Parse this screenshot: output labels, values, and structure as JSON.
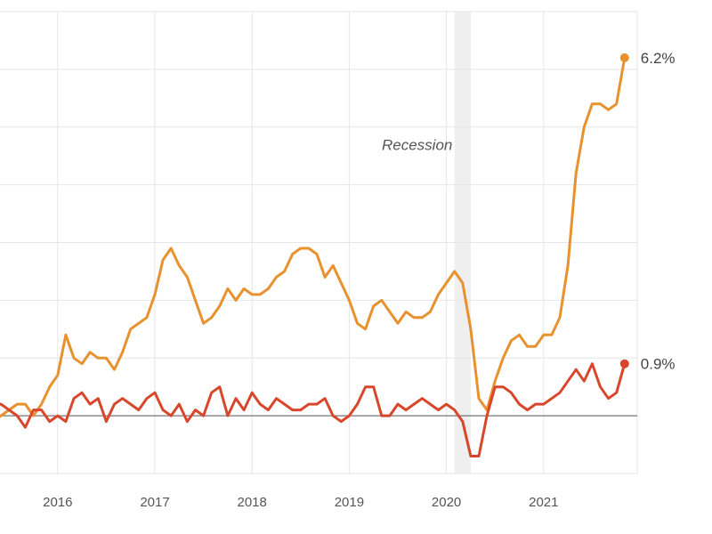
{
  "chart_data": {
    "type": "line",
    "x_ticks": [
      "2016",
      "2017",
      "2018",
      "2019",
      "2020",
      "2021"
    ],
    "ylim": [
      -1.0,
      7.0
    ],
    "y_gridlines": [
      -1,
      0,
      1,
      2,
      3,
      4,
      5,
      6,
      7
    ],
    "grid": true,
    "x_start": "2015-05",
    "recession": {
      "label": "Recession",
      "start": "2020-02",
      "end": "2020-04"
    },
    "series": [
      {
        "color": "#E8912F",
        "end_label": "6.2%",
        "values": [
          -0.1,
          0.0,
          0.1,
          0.2,
          0.2,
          0.0,
          0.2,
          0.5,
          0.7,
          1.4,
          1.0,
          0.9,
          1.1,
          1.0,
          1.0,
          0.8,
          1.1,
          1.5,
          1.6,
          1.7,
          2.1,
          2.7,
          2.9,
          2.6,
          2.4,
          2.0,
          1.6,
          1.7,
          1.9,
          2.2,
          2.0,
          2.2,
          2.1,
          2.1,
          2.2,
          2.4,
          2.5,
          2.8,
          2.9,
          2.9,
          2.8,
          2.4,
          2.6,
          2.3,
          2.0,
          1.6,
          1.5,
          1.9,
          2.0,
          1.8,
          1.6,
          1.8,
          1.7,
          1.7,
          1.8,
          2.1,
          2.3,
          2.5,
          2.3,
          1.5,
          0.3,
          0.1,
          0.6,
          1.0,
          1.3,
          1.4,
          1.2,
          1.2,
          1.4,
          1.4,
          1.7,
          2.6,
          4.2,
          5.0,
          5.4,
          5.4,
          5.3,
          5.4,
          6.2
        ]
      },
      {
        "color": "#D8472B",
        "end_label": "0.9%",
        "values": [
          0.2,
          0.2,
          0.1,
          0.0,
          -0.2,
          0.1,
          0.1,
          -0.1,
          0.0,
          -0.1,
          0.3,
          0.4,
          0.2,
          0.3,
          -0.1,
          0.2,
          0.3,
          0.2,
          0.1,
          0.3,
          0.4,
          0.1,
          0.0,
          0.2,
          -0.1,
          0.1,
          0.0,
          0.4,
          0.5,
          0.0,
          0.3,
          0.1,
          0.4,
          0.2,
          0.1,
          0.3,
          0.2,
          0.1,
          0.1,
          0.2,
          0.2,
          0.3,
          0.0,
          -0.1,
          0.0,
          0.2,
          0.5,
          0.5,
          0.0,
          0.0,
          0.2,
          0.1,
          0.2,
          0.3,
          0.2,
          0.1,
          0.2,
          0.1,
          -0.1,
          -0.7,
          -0.7,
          0.0,
          0.5,
          0.5,
          0.4,
          0.2,
          0.1,
          0.2,
          0.2,
          0.3,
          0.4,
          0.6,
          0.8,
          0.6,
          0.9,
          0.5,
          0.3,
          0.4,
          0.9
        ]
      }
    ]
  }
}
